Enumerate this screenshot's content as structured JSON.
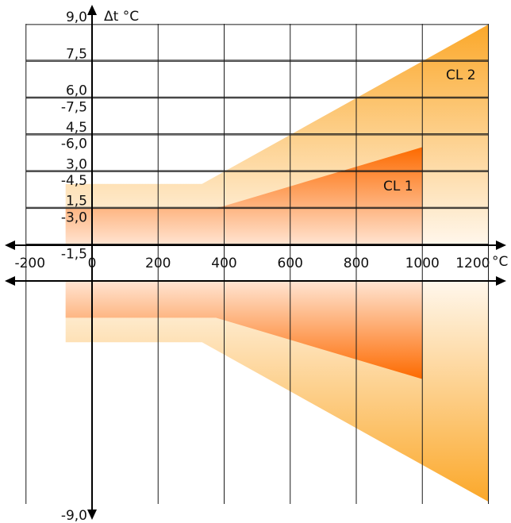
{
  "chart_data": {
    "type": "area",
    "title": "",
    "ylabel": "Δt °C",
    "xlabel_unit": "°C",
    "xlim": [
      -200,
      1200
    ],
    "ylim": [
      -9.0,
      9.0
    ],
    "grid": true,
    "x_ticks": [
      {
        "value": -200,
        "label": "-200"
      },
      {
        "value": 0,
        "label": "0"
      },
      {
        "value": 200,
        "label": "200"
      },
      {
        "value": 400,
        "label": "400"
      },
      {
        "value": 600,
        "label": "600"
      },
      {
        "value": 800,
        "label": "800"
      },
      {
        "value": 1000,
        "label": "1000"
      },
      {
        "value": 1200,
        "label": "1200"
      }
    ],
    "y_ticks_upper": [
      {
        "value": 1.5,
        "label": "1,5"
      },
      {
        "value": 3.0,
        "label": "3,0"
      },
      {
        "value": 4.5,
        "label": "4,5"
      },
      {
        "value": 6.0,
        "label": "6,0"
      },
      {
        "value": 7.5,
        "label": "7,5"
      },
      {
        "value": 9.0,
        "label": "9,0"
      }
    ],
    "y_ticks_lower": [
      {
        "value": -1.5,
        "label": "-1,5"
      },
      {
        "value": -3.0,
        "label": "-3,0"
      },
      {
        "value": -4.5,
        "label": "-4,5"
      },
      {
        "value": -6.0,
        "label": "-6,0"
      },
      {
        "value": -7.5,
        "label": "-7,5"
      },
      {
        "value": -9.0,
        "label": "-9,0"
      }
    ],
    "series": [
      {
        "name": "CL 2",
        "color": "#fba82a",
        "x": [
          -80,
          333,
          1200
        ],
        "tolerance": [
          2.5,
          2.5,
          9.0
        ]
      },
      {
        "name": "CL 1",
        "color": "#fd6a00",
        "x": [
          -80,
          375,
          1000
        ],
        "tolerance": [
          1.5,
          1.5,
          4.0
        ]
      }
    ]
  }
}
